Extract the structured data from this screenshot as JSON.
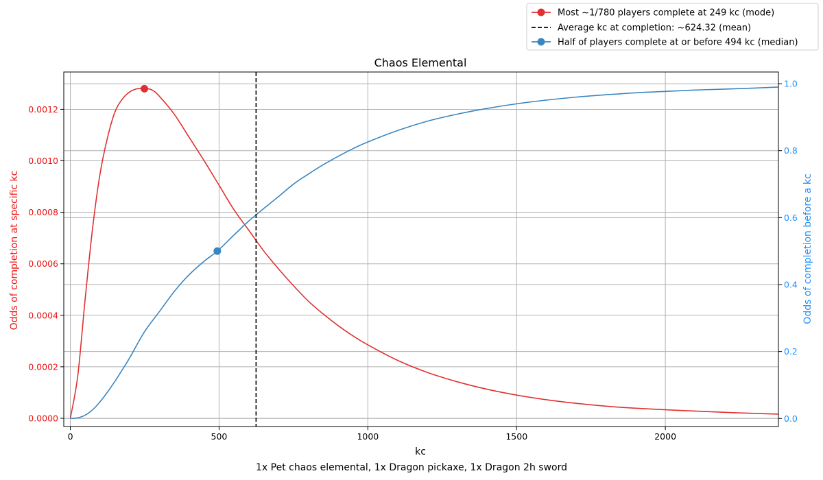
{
  "chart_data": {
    "type": "line",
    "title": "Chaos Elemental",
    "xlabel": "kc",
    "caption": "1x Pet chaos elemental, 1x Dragon pickaxe, 1x Dragon 2h sword",
    "ylabel_left": "Odds of completion at specific kc",
    "ylabel_right": "Odds of completion before a kc",
    "xlim": [
      -22,
      2380
    ],
    "ylim_left": [
      -3.2e-05,
      0.001345
    ],
    "ylim_right": [
      -0.024,
      1.035
    ],
    "x_ticks": [
      0,
      500,
      1000,
      1500,
      2000
    ],
    "y_left_ticks": [
      "0.0000",
      "0.0002",
      "0.0004",
      "0.0006",
      "0.0008",
      "0.0010",
      "0.0012"
    ],
    "y_right_ticks": [
      "0.0",
      "0.2",
      "0.4",
      "0.6",
      "0.8",
      "1.0"
    ],
    "grid": true,
    "legend_position": "top-right",
    "colors": {
      "pmf": "#e03030",
      "pmf_axis": "#ee1111",
      "cdf": "#3a86c0",
      "cdf_axis": "#1e90ff",
      "mean": "#000000",
      "grid": "#b0b0b0"
    },
    "series": [
      {
        "name": "Most ~1/780 players complete at 249 kc (mode)",
        "axis": "left",
        "x": [
          0,
          25,
          50,
          75,
          100,
          125,
          150,
          175,
          200,
          225,
          249,
          275,
          300,
          350,
          400,
          450,
          500,
          550,
          600,
          650,
          700,
          750,
          800,
          850,
          900,
          950,
          1000,
          1100,
          1200,
          1300,
          1400,
          1500,
          1600,
          1700,
          1800,
          1900,
          2000,
          2100,
          2200,
          2300,
          2380
        ],
        "values": [
          0.0,
          0.000165,
          0.000465,
          0.00074,
          0.00095,
          0.00109,
          0.00119,
          0.00124,
          0.001268,
          0.00128,
          0.001282,
          0.001275,
          0.00125,
          0.00118,
          0.00109,
          0.001,
          0.000905,
          0.00081,
          0.00073,
          0.00065,
          0.00058,
          0.000515,
          0.000455,
          0.000405,
          0.00036,
          0.00032,
          0.000285,
          0.000225,
          0.000178,
          0.000142,
          0.000113,
          9e-05,
          7.2e-05,
          5.8e-05,
          4.7e-05,
          3.9e-05,
          3.3e-05,
          2.8e-05,
          2.3e-05,
          1.9e-05,
          1.6e-05
        ],
        "marker": {
          "x": 249,
          "y": 0.00128
        }
      },
      {
        "name": "Average kc at completion: ~624.32 (mean)",
        "axis": "left",
        "type": "vline",
        "x": 624.32
      },
      {
        "name": "Half of players complete at or before 494 kc (median)",
        "axis": "right",
        "x": [
          0,
          25,
          50,
          75,
          100,
          125,
          150,
          175,
          200,
          250,
          300,
          350,
          400,
          450,
          494,
          550,
          600,
          650,
          700,
          750,
          800,
          850,
          900,
          950,
          1000,
          1100,
          1200,
          1300,
          1400,
          1500,
          1600,
          1700,
          1800,
          1900,
          2000,
          2100,
          2200,
          2300,
          2380
        ],
        "values": [
          0.0,
          0.002,
          0.01,
          0.026,
          0.05,
          0.079,
          0.111,
          0.146,
          0.182,
          0.26,
          0.32,
          0.38,
          0.43,
          0.47,
          0.5,
          0.548,
          0.59,
          0.627,
          0.663,
          0.7,
          0.73,
          0.758,
          0.783,
          0.806,
          0.826,
          0.86,
          0.888,
          0.909,
          0.926,
          0.94,
          0.951,
          0.96,
          0.967,
          0.973,
          0.977,
          0.981,
          0.984,
          0.987,
          0.99
        ],
        "marker": {
          "x": 494,
          "y": 0.5
        }
      }
    ]
  }
}
